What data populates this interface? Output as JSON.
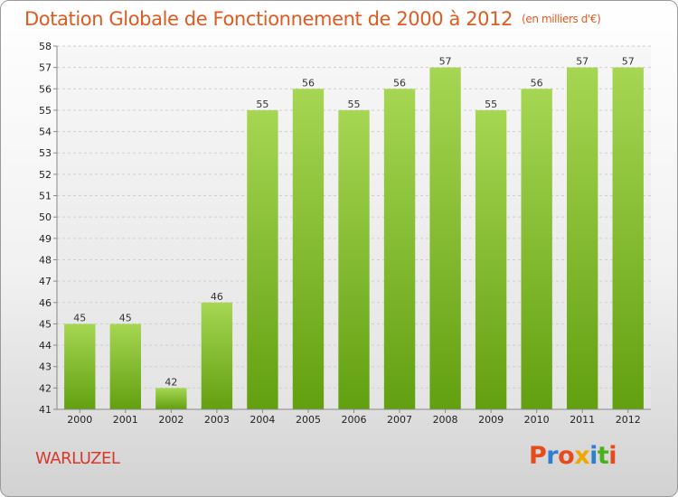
{
  "header": {
    "title": "Dotation Globale de Fonctionnement de 2000 à 2012",
    "unit": "(en milliers d'€)"
  },
  "footer": {
    "commune": "WARLUZEL",
    "logo_text": "Proxiti"
  },
  "colors": {
    "title": "#e05a20",
    "commune": "#d8392a",
    "bar_light": "#a6d653",
    "bar_dark": "#62a010",
    "logo": [
      "#e64b1e",
      "#2f7fd0",
      "#e64b1e",
      "#f0a800",
      "#2f7fd0",
      "#4caf1e",
      "#e64b1e"
    ]
  },
  "chart_data": {
    "type": "bar",
    "categories": [
      "2000",
      "2001",
      "2002",
      "2003",
      "2004",
      "2005",
      "2006",
      "2007",
      "2008",
      "2009",
      "2010",
      "2011",
      "2012"
    ],
    "values": [
      45,
      45,
      42,
      46,
      55,
      56,
      55,
      56,
      57,
      55,
      56,
      57,
      57
    ],
    "title": "Dotation Globale de Fonctionnement de 2000 à 2012",
    "subtitle": "(en milliers d'€)",
    "xlabel": "",
    "ylabel": "",
    "ylim": [
      41,
      58
    ],
    "yticks": [
      41,
      42,
      43,
      44,
      45,
      46,
      47,
      48,
      49,
      50,
      51,
      52,
      53,
      54,
      55,
      56,
      57,
      58
    ],
    "grid": true,
    "data_labels": true,
    "legend": "none"
  }
}
